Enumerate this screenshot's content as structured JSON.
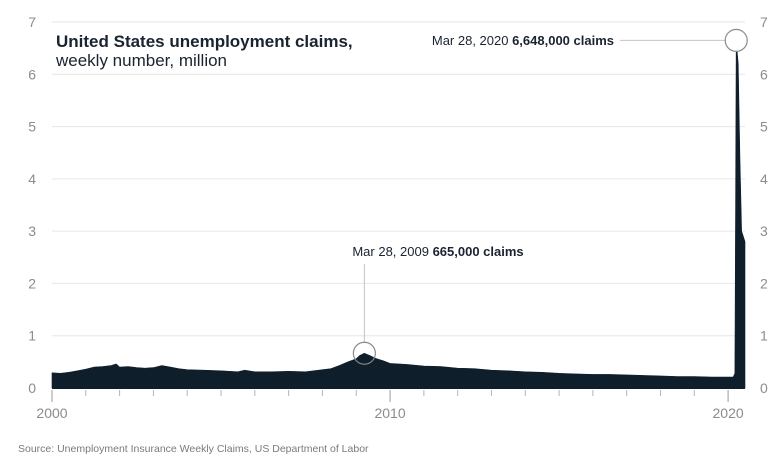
{
  "chart_data": {
    "type": "area",
    "title": "United States unemployment claims,",
    "subtitle": "weekly number, million",
    "source": "Source: Unemployment Insurance Weekly Claims, US Department of Labor",
    "ylim": [
      0,
      7
    ],
    "yticks": [
      "0",
      "1",
      "2",
      "3",
      "4",
      "5",
      "6",
      "7"
    ],
    "xlim": [
      2000,
      2020.5
    ],
    "xticks": [
      {
        "value": 2000,
        "label": "2000"
      },
      {
        "value": 2010,
        "label": "2010"
      },
      {
        "value": 2020,
        "label": "2020"
      }
    ],
    "x_minor_ticks": [
      2001,
      2002,
      2003,
      2004,
      2005,
      2006,
      2007,
      2008,
      2009,
      2011,
      2012,
      2013,
      2014,
      2015,
      2016,
      2017,
      2018,
      2019
    ],
    "grid": true,
    "fill_color": "#0f1e2b",
    "series": [
      {
        "x": [
          2000.0,
          2000.25,
          2000.5,
          2000.75,
          2001.0,
          2001.25,
          2001.5,
          2001.75,
          2001.9,
          2002.0,
          2002.25,
          2002.5,
          2002.75,
          2003.0,
          2003.25,
          2003.5,
          2003.75,
          2004.0,
          2004.5,
          2005.0,
          2005.5,
          2005.7,
          2006.0,
          2006.5,
          2007.0,
          2007.5,
          2008.0,
          2008.25,
          2008.5,
          2008.75,
          2009.0,
          2009.1,
          2009.24,
          2009.4,
          2009.6,
          2009.8,
          2010.0,
          2010.5,
          2011.0,
          2011.5,
          2012.0,
          2012.5,
          2013.0,
          2013.5,
          2014.0,
          2014.5,
          2015.0,
          2015.5,
          2016.0,
          2016.5,
          2017.0,
          2017.5,
          2018.0,
          2018.5,
          2019.0,
          2019.5,
          2020.0,
          2020.15,
          2020.2,
          2020.22,
          2020.24,
          2020.3,
          2020.35,
          2020.4,
          2020.5
        ],
        "y": [
          0.29,
          0.28,
          0.3,
          0.33,
          0.36,
          0.4,
          0.41,
          0.43,
          0.46,
          0.4,
          0.41,
          0.39,
          0.38,
          0.39,
          0.43,
          0.4,
          0.37,
          0.35,
          0.34,
          0.33,
          0.31,
          0.34,
          0.31,
          0.31,
          0.32,
          0.31,
          0.35,
          0.37,
          0.43,
          0.5,
          0.56,
          0.62,
          0.665,
          0.62,
          0.56,
          0.52,
          0.47,
          0.45,
          0.42,
          0.41,
          0.38,
          0.37,
          0.34,
          0.33,
          0.31,
          0.3,
          0.28,
          0.27,
          0.26,
          0.26,
          0.25,
          0.24,
          0.23,
          0.22,
          0.22,
          0.21,
          0.21,
          0.21,
          0.28,
          3.3,
          6.648,
          6.2,
          4.4,
          3.0,
          2.8
        ]
      }
    ],
    "annotations": [
      {
        "id": "peak-2020",
        "x": 2020.24,
        "y": 6.648,
        "date": "Mar 28, 2020",
        "value": "6,648,000 claims"
      },
      {
        "id": "peak-2009",
        "x": 2009.24,
        "y": 0.665,
        "date": "Mar 28, 2009",
        "value": "665,000 claims"
      }
    ]
  }
}
